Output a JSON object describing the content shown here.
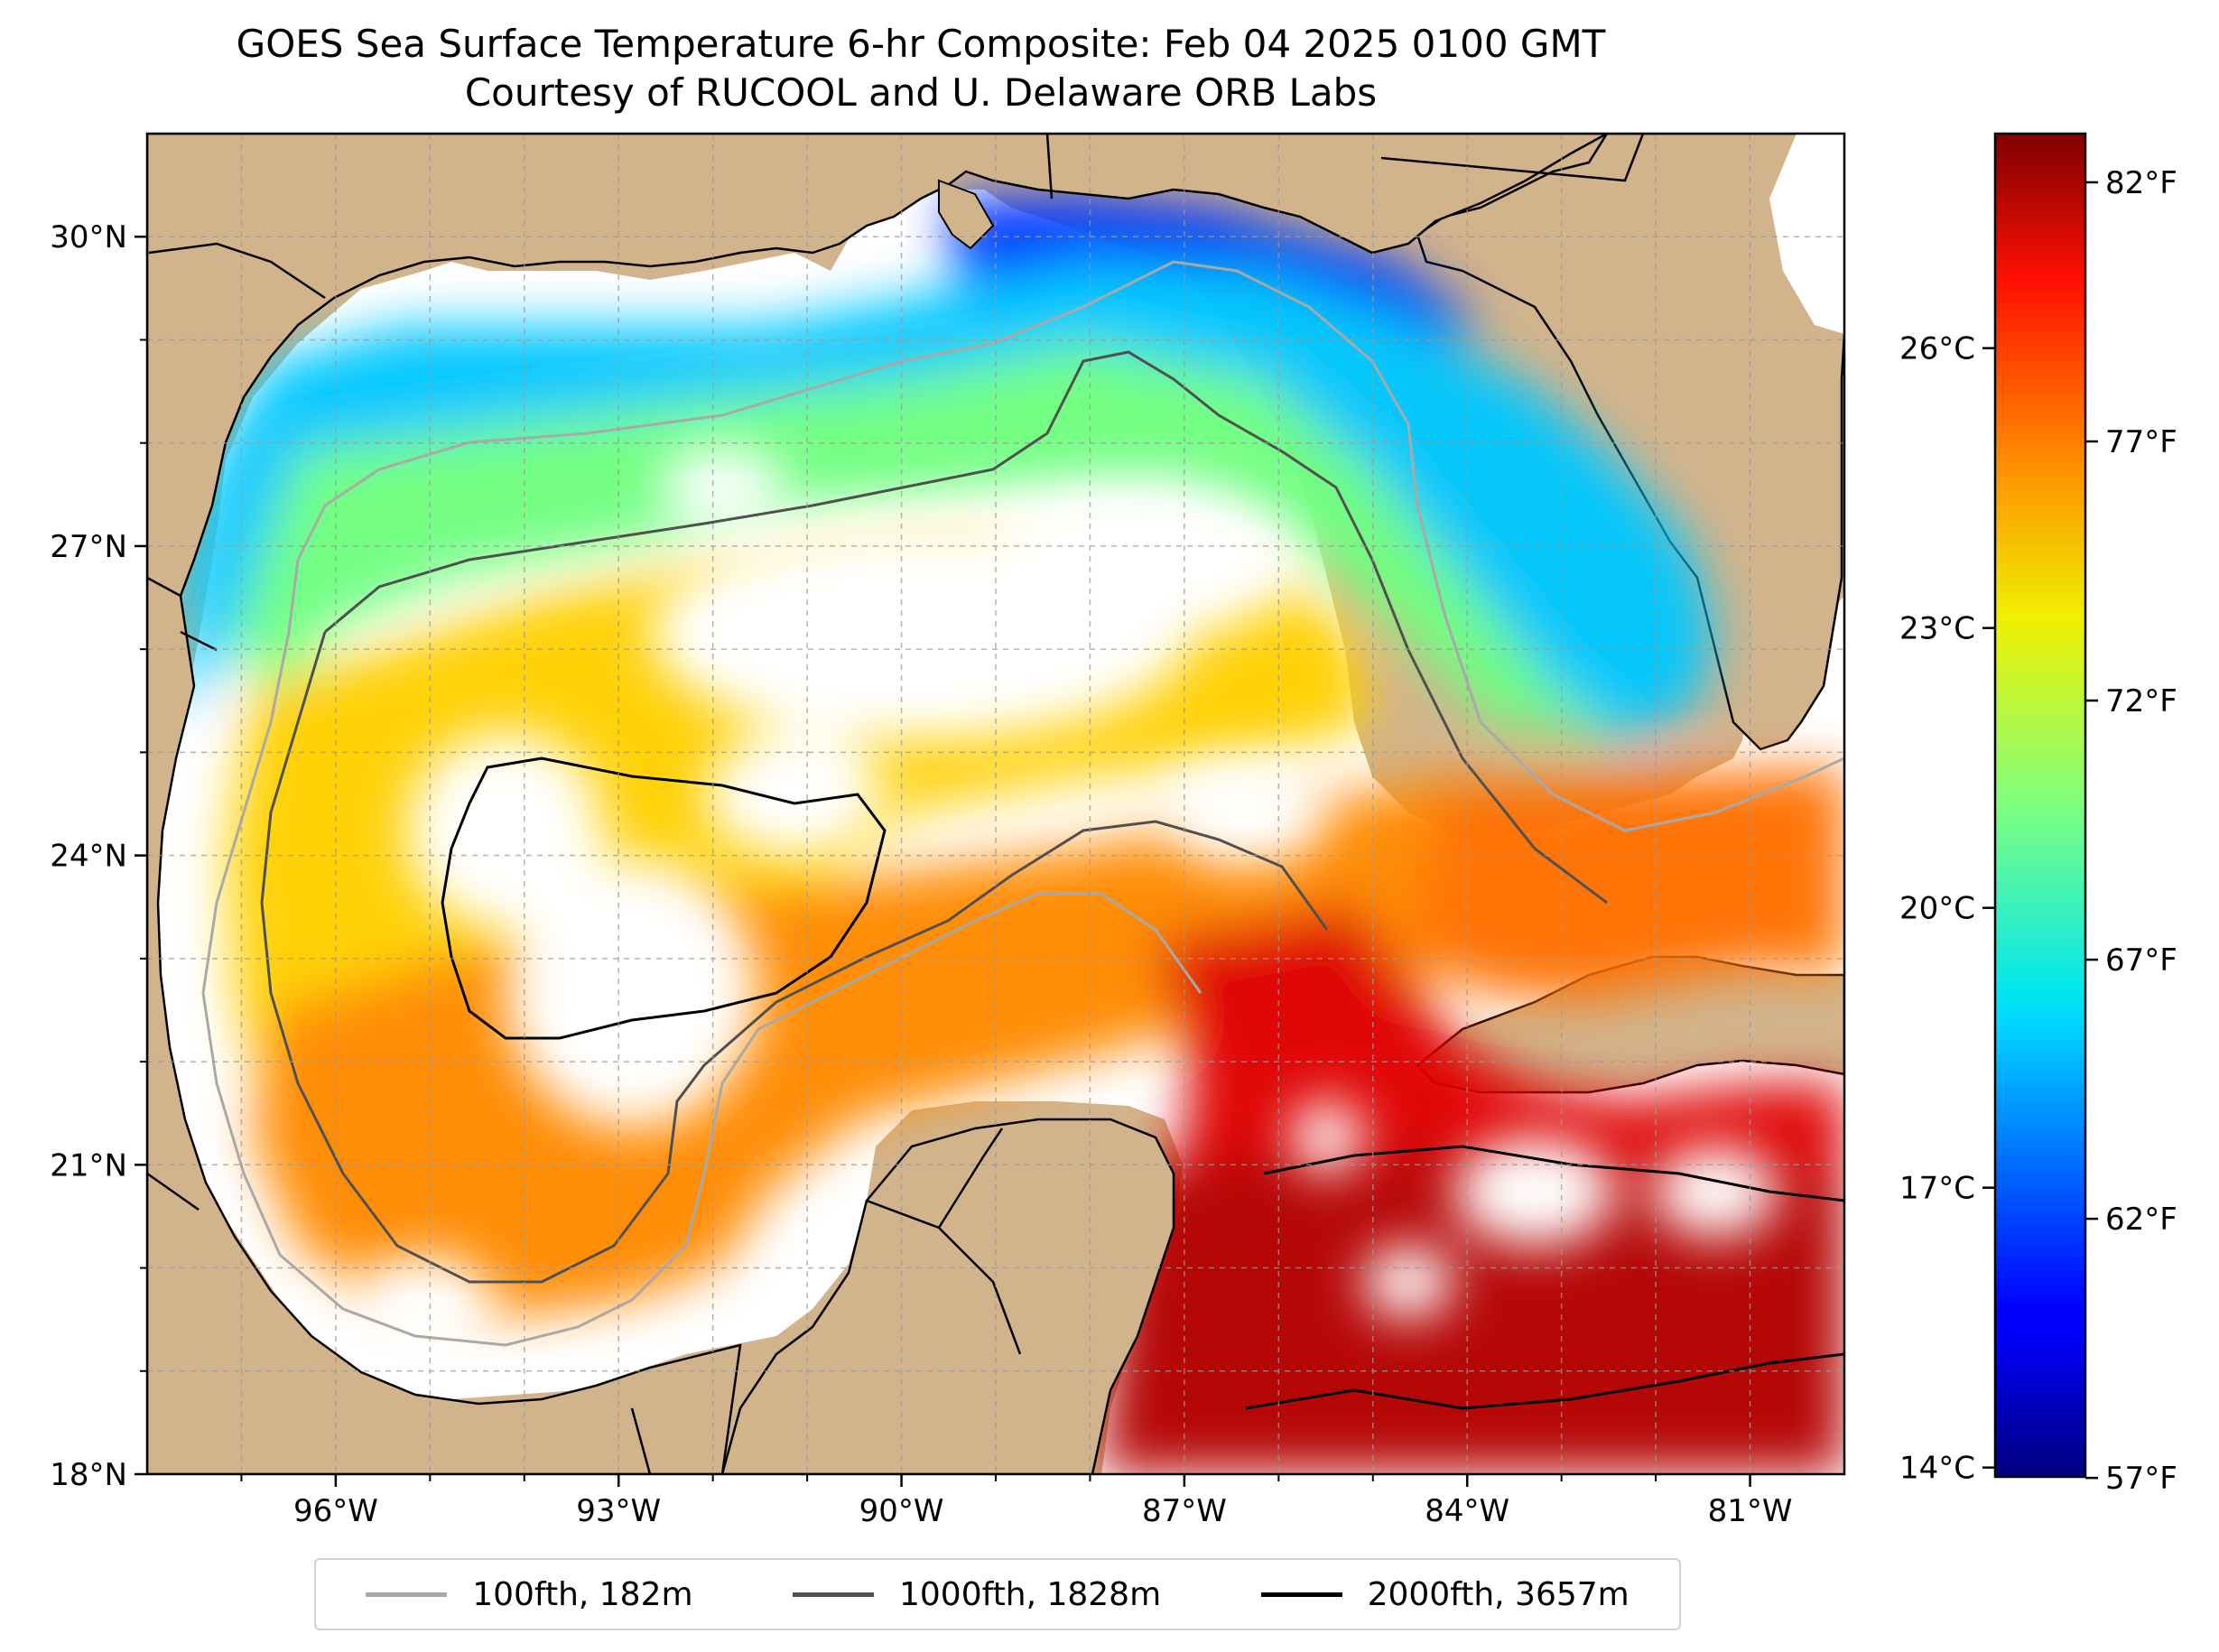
{
  "title": {
    "line1": "GOES Sea Surface Temperature 6-hr Composite: Feb 04 2025 0100 GMT",
    "line2": "Courtesy of RUCOOL and U. Delaware ORB Labs"
  },
  "map": {
    "extent": {
      "lon_min": -98,
      "lon_max": -80,
      "lat_min": 18,
      "lat_max": 31
    },
    "lon_ticks": [
      {
        "lon": -96,
        "label": "96°W"
      },
      {
        "lon": -93,
        "label": "93°W"
      },
      {
        "lon": -90,
        "label": "90°W"
      },
      {
        "lon": -87,
        "label": "87°W"
      },
      {
        "lon": -84,
        "label": "84°W"
      },
      {
        "lon": -81,
        "label": "81°W"
      }
    ],
    "lat_ticks": [
      {
        "lat": 18,
        "label": "18°N"
      },
      {
        "lat": 21,
        "label": "21°N"
      },
      {
        "lat": 24,
        "label": "24°N"
      },
      {
        "lat": 27,
        "label": "27°N"
      },
      {
        "lat": 30,
        "label": "30°N"
      }
    ],
    "gridlines": true,
    "land_color": "#d2b48c",
    "colormap": "jet"
  },
  "colorbar": {
    "celsius_ticks": [
      {
        "value": 14,
        "label": "14°C"
      },
      {
        "value": 17,
        "label": "17°C"
      },
      {
        "value": 20,
        "label": "20°C"
      },
      {
        "value": 23,
        "label": "23°C"
      },
      {
        "value": 26,
        "label": "26°C"
      }
    ],
    "fahrenheit_ticks": [
      {
        "value": 57,
        "label": "57°F"
      },
      {
        "value": 62,
        "label": "62°F"
      },
      {
        "value": 67,
        "label": "67°F"
      },
      {
        "value": 72,
        "label": "72°F"
      },
      {
        "value": 77,
        "label": "77°F"
      },
      {
        "value": 82,
        "label": "82°F"
      }
    ],
    "range_c": [
      13.9,
      28.3
    ]
  },
  "legend": {
    "placement": "bottom-center",
    "items": [
      {
        "label": "100fth, 182m",
        "color": "#a9a9a9"
      },
      {
        "label": "1000fth, 1828m",
        "color": "#505050"
      },
      {
        "label": "2000fth, 3657m",
        "color": "#000000"
      }
    ]
  }
}
